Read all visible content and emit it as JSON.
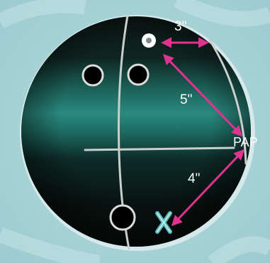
{
  "diagram": {
    "labels": {
      "three_inch": "3\"",
      "five_inch": "5\"",
      "four_inch": "4\"",
      "pap": "PAP"
    },
    "colors": {
      "background": "#a9d3d6",
      "ball_dark": "#0b1412",
      "ball_teal": "#1f7d72",
      "arrow": "#e0338f",
      "lines": "#c9cfcc",
      "x_mark": "#59b8b8"
    },
    "icons": {
      "pin": "white-dot",
      "mark": "x-mark"
    }
  }
}
